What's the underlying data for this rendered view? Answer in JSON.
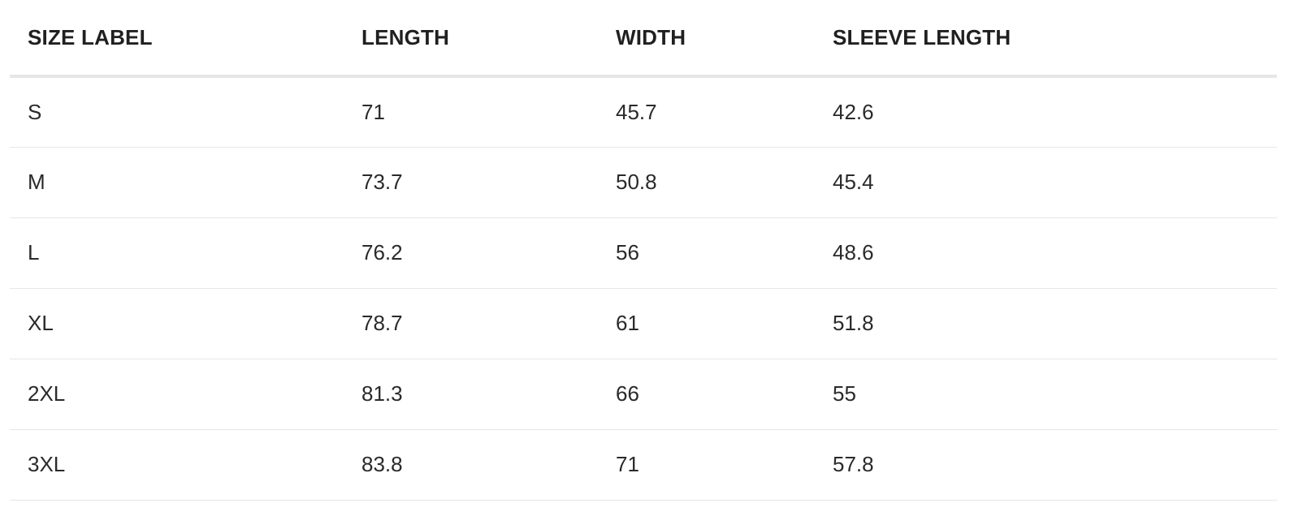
{
  "table": {
    "headers": [
      "SIZE LABEL",
      "LENGTH",
      "WIDTH",
      "SLEEVE LENGTH"
    ],
    "rows": [
      [
        "S",
        "71",
        "45.7",
        "42.6"
      ],
      [
        "M",
        "73.7",
        "50.8",
        "45.4"
      ],
      [
        "L",
        "76.2",
        "56",
        "48.6"
      ],
      [
        "XL",
        "78.7",
        "61",
        "51.8"
      ],
      [
        "2XL",
        "81.3",
        "66",
        "55"
      ],
      [
        "3XL",
        "83.8",
        "71",
        "57.8"
      ]
    ]
  },
  "colors": {
    "text": "#222222",
    "divider": "#e6e6e6",
    "background": "#ffffff"
  }
}
